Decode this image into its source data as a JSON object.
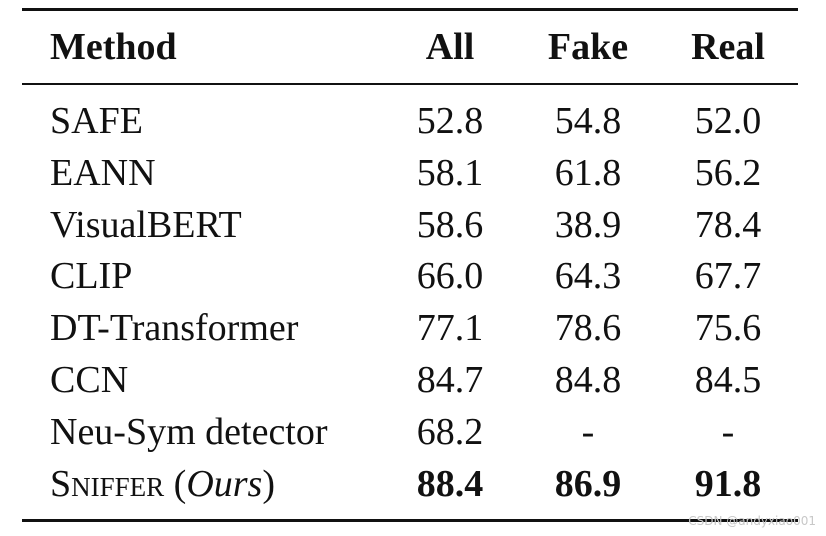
{
  "table": {
    "header": [
      "Method",
      "All",
      "Fake",
      "Real"
    ],
    "rows": [
      [
        "SAFE",
        "52.8",
        "54.8",
        "52.0"
      ],
      [
        "EANN",
        "58.1",
        "61.8",
        "56.2"
      ],
      [
        "VisualBERT",
        "58.6",
        "38.9",
        "78.4"
      ],
      [
        "CLIP",
        "66.0",
        "64.3",
        "67.7"
      ],
      [
        "DT-Transformer",
        "77.1",
        "78.6",
        "75.6"
      ],
      [
        "CCN",
        "84.7",
        "84.8",
        "84.5"
      ],
      [
        "Neu-Sym detector",
        "68.2",
        "-",
        "-"
      ]
    ],
    "ours": {
      "method": [
        "Sniffer",
        " (",
        "Ours",
        ")"
      ],
      "values": [
        "88.4",
        "86.9",
        "91.8"
      ],
      "bold": true
    }
  },
  "watermark": "CSDN @andyxiao001"
}
